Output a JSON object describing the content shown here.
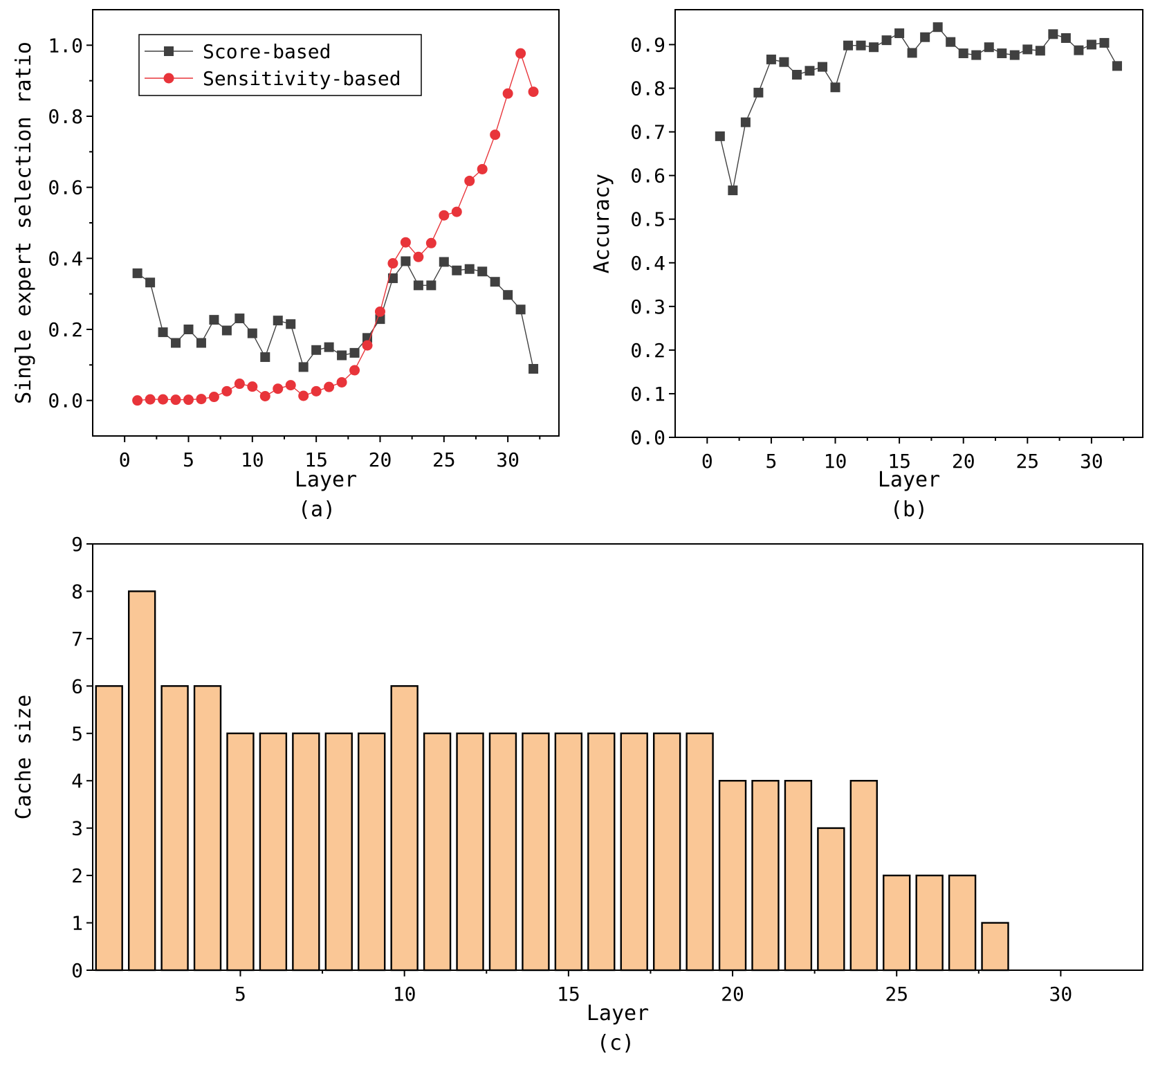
{
  "chart_data": [
    {
      "type": "line",
      "panel_label": "(a)",
      "xlabel": "Layer",
      "ylabel": "Single expert selection ratio",
      "xlim": [
        -2.5,
        34
      ],
      "ylim": [
        -0.1,
        1.1
      ],
      "xticks": [
        "0",
        "5",
        "10",
        "15",
        "20",
        "25",
        "30"
      ],
      "yticks": [
        "0.0",
        "0.2",
        "0.4",
        "0.6",
        "0.8",
        "1.0"
      ],
      "legend_position": "top-left",
      "grid": false,
      "x": [
        1,
        2,
        3,
        4,
        5,
        6,
        7,
        8,
        9,
        10,
        11,
        12,
        13,
        14,
        15,
        16,
        17,
        18,
        19,
        20,
        21,
        22,
        23,
        24,
        25,
        26,
        27,
        28,
        29,
        30,
        31,
        32
      ],
      "series": [
        {
          "name": "Score-based",
          "color": "#404040",
          "marker": "square",
          "values": [
            0.358,
            0.332,
            0.192,
            0.162,
            0.2,
            0.162,
            0.227,
            0.197,
            0.231,
            0.189,
            0.122,
            0.225,
            0.215,
            0.094,
            0.142,
            0.15,
            0.127,
            0.134,
            0.176,
            0.229,
            0.344,
            0.392,
            0.324,
            0.324,
            0.39,
            0.366,
            0.37,
            0.363,
            0.334,
            0.297,
            0.256,
            0.089
          ]
        },
        {
          "name": "Sensitivity-based",
          "color": "#e8343a",
          "marker": "circle",
          "values": [
            0.0,
            0.003,
            0.003,
            0.002,
            0.002,
            0.004,
            0.01,
            0.026,
            0.047,
            0.039,
            0.012,
            0.033,
            0.043,
            0.013,
            0.026,
            0.038,
            0.051,
            0.085,
            0.155,
            0.25,
            0.386,
            0.445,
            0.404,
            0.443,
            0.521,
            0.531,
            0.618,
            0.651,
            0.748,
            0.864,
            0.977,
            0.869
          ]
        }
      ]
    },
    {
      "type": "line",
      "panel_label": "(b)",
      "xlabel": "Layer",
      "ylabel": "Accuracy",
      "xlim": [
        -2.5,
        34
      ],
      "ylim": [
        0,
        0.98
      ],
      "xticks": [
        "0",
        "5",
        "10",
        "15",
        "20",
        "25",
        "30"
      ],
      "yticks": [
        "0.0",
        "0.1",
        "0.2",
        "0.3",
        "0.4",
        "0.5",
        "0.6",
        "0.7",
        "0.8",
        "0.9"
      ],
      "grid": false,
      "x": [
        1,
        2,
        3,
        4,
        5,
        6,
        7,
        8,
        9,
        10,
        11,
        12,
        13,
        14,
        15,
        16,
        17,
        18,
        19,
        20,
        21,
        22,
        23,
        24,
        25,
        26,
        27,
        28,
        29,
        30,
        31,
        32
      ],
      "series": [
        {
          "color": "#404040",
          "marker": "square",
          "values": [
            0.69,
            0.566,
            0.722,
            0.79,
            0.866,
            0.86,
            0.831,
            0.84,
            0.849,
            0.802,
            0.898,
            0.898,
            0.894,
            0.91,
            0.926,
            0.881,
            0.917,
            0.94,
            0.906,
            0.88,
            0.876,
            0.894,
            0.88,
            0.876,
            0.889,
            0.886,
            0.924,
            0.915,
            0.887,
            0.9,
            0.904,
            0.851
          ]
        }
      ]
    },
    {
      "type": "bar",
      "panel_label": "(c)",
      "xlabel": "Layer",
      "ylabel": "Cache size",
      "xlim": [
        0.5,
        32.5
      ],
      "ylim": [
        0,
        9
      ],
      "xticks": [
        "5",
        "10",
        "15",
        "20",
        "25",
        "30"
      ],
      "yticks": [
        "0",
        "1",
        "2",
        "3",
        "4",
        "5",
        "6",
        "7",
        "8",
        "9"
      ],
      "bar_color": "#fac796",
      "grid": false,
      "categories": [
        1,
        2,
        3,
        4,
        5,
        6,
        7,
        8,
        9,
        10,
        11,
        12,
        13,
        14,
        15,
        16,
        17,
        18,
        19,
        20,
        21,
        22,
        23,
        24,
        25,
        26,
        27,
        28,
        29,
        30,
        31,
        32
      ],
      "values": [
        6,
        8,
        6,
        6,
        5,
        5,
        5,
        5,
        5,
        6,
        5,
        5,
        5,
        5,
        5,
        5,
        5,
        5,
        5,
        4,
        4,
        4,
        3,
        4,
        2,
        2,
        2,
        1,
        0,
        0,
        0,
        0
      ]
    }
  ]
}
